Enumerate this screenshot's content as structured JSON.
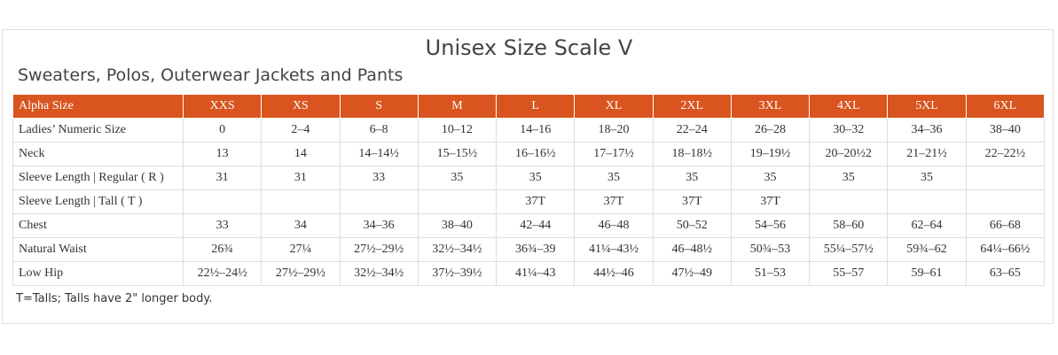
{
  "header": {
    "title": "Unisex Size Scale V",
    "subtitle": "Sweaters, Polos, Outerwear Jackets and Pants"
  },
  "table": {
    "columns": [
      "Alpha Size",
      "XXS",
      "XS",
      "S",
      "M",
      "L",
      "XL",
      "2XL",
      "3XL",
      "4XL",
      "5XL",
      "6XL"
    ],
    "rows": [
      [
        "Ladies’ Numeric Size",
        "0",
        "2–4",
        "6–8",
        "10–12",
        "14–16",
        "18–20",
        "22–24",
        "26–28",
        "30–32",
        "34–36",
        "38–40"
      ],
      [
        "Neck",
        "13",
        "14",
        "14–14½",
        "15–15½",
        "16–16½",
        "17–17½",
        "18–18½",
        "19–19½",
        "20–20½2",
        "21–21½",
        "22–22½"
      ],
      [
        "Sleeve Length | Regular ( R )",
        "31",
        "31",
        "33",
        "35",
        "35",
        "35",
        "35",
        "35",
        "35",
        "35",
        null
      ],
      [
        "Sleeve Length | Tall ( T )",
        null,
        null,
        null,
        null,
        "37T",
        "37T",
        "37T",
        "37T",
        null,
        null,
        null
      ],
      [
        "Chest",
        "33",
        "34",
        "34–36",
        "38–40",
        "42–44",
        "46–48",
        "50–52",
        "54–56",
        "58–60",
        "62–64",
        "66–68"
      ],
      [
        "Natural Waist",
        "26¾",
        "27¼",
        "27½–29½",
        "32½–34½",
        "36¾–39",
        "41¼–43½",
        "46–48½",
        "50¾–53",
        "55¼–57½",
        "59¾–62",
        "64¼–66½"
      ],
      [
        "Low Hip",
        "22½–24½",
        "27½–29½",
        "32½–34½",
        "37½–39½",
        "41¼–43",
        "44½–46",
        "47½–49",
        "51–53",
        "55–57",
        "59–61",
        "63–65"
      ]
    ]
  },
  "footnote": "T=Talls; Talls have 2\" longer body."
}
